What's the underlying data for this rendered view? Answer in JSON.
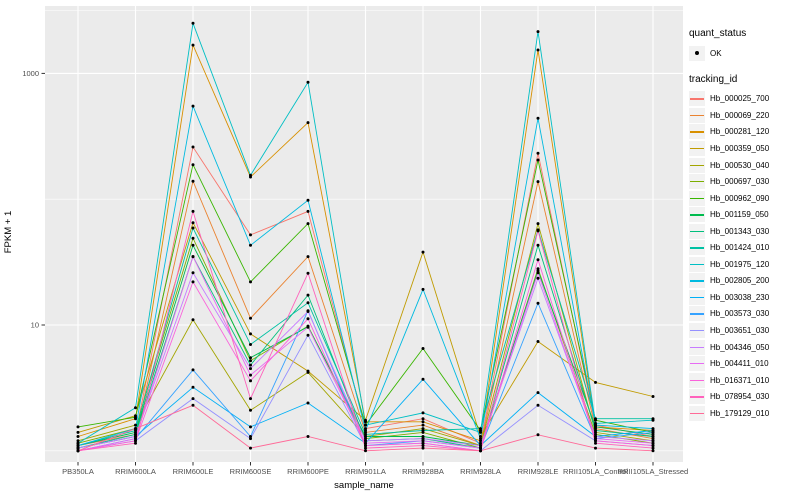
{
  "style": {
    "panel_bg": "#EBEBEB",
    "grid_color": "#FFFFFF",
    "point_color": "#000000",
    "axis_text_color": "#4D4D4D",
    "tick_color": "#333333",
    "legend_key_bg": "#F2F2F2"
  },
  "chart_data": {
    "type": "line",
    "title": "",
    "xlabel": "sample_name",
    "ylabel": "FPKM + 1",
    "y_scale": "log10",
    "y_ticks": [
      10,
      1000
    ],
    "y_minor_gridlines": [
      1,
      100,
      3162
    ],
    "ylim": [
      0.82,
      3400
    ],
    "grid": true,
    "legend": {
      "position": "right",
      "quant_title": "quant_status",
      "quant_label": "OK",
      "quant_symbol": "point",
      "tracking_title": "tracking_id"
    },
    "categories": [
      "PB350LA",
      "RRIM600LA",
      "RRIM600LE",
      "RRIM600SE",
      "RRIM600PE",
      "RRIM901LA",
      "RRIM928BA",
      "RRIM928LA",
      "RRIM928LE",
      "RRII105LA_Control",
      "RRII105LA_Stressed"
    ],
    "series": [
      {
        "name": "Hb_000025_700",
        "color": "#F8766D",
        "values": [
          1.1,
          1.35,
          260,
          52,
          80,
          1.5,
          1.8,
          1.15,
          232,
          1.6,
          1.3
        ]
      },
      {
        "name": "Hb_000069_220",
        "color": "#EA8331",
        "values": [
          1.05,
          1.3,
          139,
          11.3,
          35,
          1.4,
          1.6,
          1.1,
          138,
          1.5,
          1.25
        ]
      },
      {
        "name": "Hb_000281_120",
        "color": "#D89000",
        "values": [
          1.3,
          1.8,
          1680,
          150,
          406,
          1.7,
          1.7,
          1.2,
          1535,
          1.55,
          1.45
        ]
      },
      {
        "name": "Hb_000359_050",
        "color": "#C09B00",
        "values": [
          1.4,
          1.9,
          65,
          8.5,
          4.3,
          1.75,
          38,
          1.3,
          7.4,
          3.5,
          2.7
        ]
      },
      {
        "name": "Hb_000530_040",
        "color": "#A3A500",
        "values": [
          1.2,
          1.6,
          11,
          2.1,
          4.2,
          1.3,
          1.5,
          1.1,
          64,
          1.4,
          1.2
        ]
      },
      {
        "name": "Hb_000697_030",
        "color": "#7CAE00",
        "values": [
          1.15,
          1.5,
          49,
          5.2,
          9.8,
          1.25,
          1.4,
          1.05,
          28,
          1.35,
          1.15
        ]
      },
      {
        "name": "Hb_000962_090",
        "color": "#39B600",
        "values": [
          1.55,
          1.85,
          188,
          22,
          64,
          1.6,
          6.5,
          1.45,
          205,
          1.75,
          1.4
        ]
      },
      {
        "name": "Hb_001159_050",
        "color": "#00BB4E",
        "values": [
          1.1,
          1.4,
          43,
          5.5,
          9.7,
          1.3,
          1.3,
          1.1,
          27,
          1.55,
          1.35
        ]
      },
      {
        "name": "Hb_001343_030",
        "color": "#00BF7D",
        "values": [
          1.05,
          1.35,
          35,
          4.8,
          17.3,
          1.2,
          1.25,
          1.05,
          43,
          1.45,
          1.3
        ]
      },
      {
        "name": "Hb_001424_010",
        "color": "#00C1A3",
        "values": [
          1.1,
          1.45,
          59,
          7.0,
          15,
          1.35,
          1.45,
          1.5,
          57,
          1.8,
          1.8
        ]
      },
      {
        "name": "Hb_001975_120",
        "color": "#00BFC4",
        "values": [
          1.15,
          2.2,
          2500,
          155,
          850,
          1.6,
          2.0,
          1.4,
          2150,
          1.65,
          1.75
        ]
      },
      {
        "name": "Hb_002805_200",
        "color": "#00BAE0",
        "values": [
          1.1,
          1.5,
          550,
          43,
          98,
          1.45,
          19.2,
          1.25,
          440,
          1.6,
          1.5
        ]
      },
      {
        "name": "Hb_003038_230",
        "color": "#00B0F6",
        "values": [
          1.05,
          1.3,
          3.2,
          1.55,
          2.4,
          1.15,
          3.7,
          1.1,
          2.9,
          1.3,
          1.45
        ]
      },
      {
        "name": "Hb_003573_030",
        "color": "#35A2FF",
        "values": [
          1.0,
          1.25,
          4.4,
          1.3,
          13,
          1.1,
          1.2,
          1.05,
          14.9,
          1.25,
          1.4
        ]
      },
      {
        "name": "Hb_003651_030",
        "color": "#9590FF",
        "values": [
          1.0,
          1.2,
          2.6,
          1.25,
          8.3,
          1.1,
          1.15,
          1.0,
          2.3,
          1.2,
          1.1
        ]
      },
      {
        "name": "Hb_004346_050",
        "color": "#C77CFF",
        "values": [
          1.05,
          1.3,
          26,
          4.5,
          12.8,
          1.2,
          1.25,
          1.1,
          23.5,
          1.3,
          1.2
        ]
      },
      {
        "name": "Hb_004411_010",
        "color": "#E76BF3",
        "values": [
          1.0,
          1.25,
          35,
          4.0,
          9.6,
          1.15,
          1.2,
          1.05,
          26,
          1.25,
          1.15
        ]
      },
      {
        "name": "Hb_016371_010",
        "color": "#FA62DB",
        "values": [
          1.0,
          1.2,
          22,
          3.6,
          11.2,
          1.1,
          1.15,
          1.0,
          33,
          1.2,
          1.1
        ]
      },
      {
        "name": "Hb_078954_030",
        "color": "#FF62BC",
        "values": [
          1.0,
          1.15,
          80,
          2.6,
          25.8,
          1.05,
          1.1,
          1.0,
          56,
          1.15,
          1.05
        ]
      },
      {
        "name": "Hb_179129_010",
        "color": "#FF6A98",
        "values": [
          1.0,
          1.5,
          2.3,
          1.05,
          1.3,
          1.0,
          1.05,
          1.0,
          1.34,
          1.05,
          1.0
        ]
      }
    ]
  }
}
